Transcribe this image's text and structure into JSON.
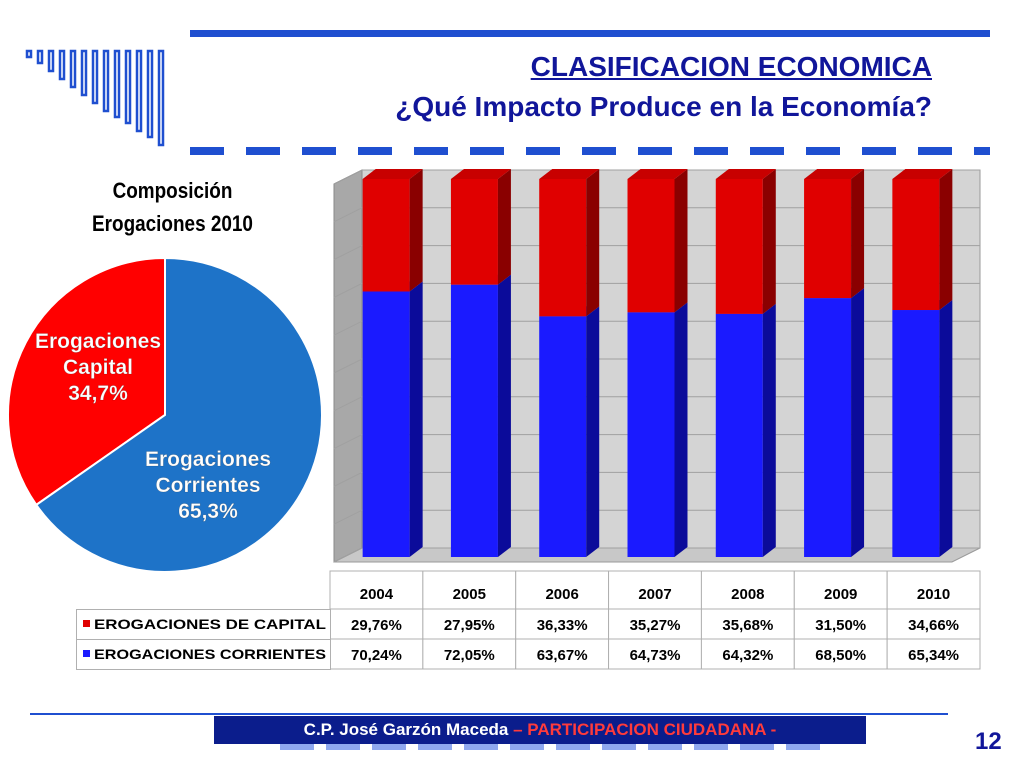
{
  "slide": {
    "title": "CLASIFICACION ECONOMICA",
    "subtitle": "¿Qué Impacto Produce en la Economía?",
    "footer_author": "C.P. José Garzón Maceda",
    "footer_highlight": " – PARTICIPACION CIUDADANA -",
    "page_number": "12"
  },
  "colors": {
    "capital": "#e00000",
    "corrientes": "#1a1aff",
    "pie_capital": "#ff0000",
    "pie_corrientes": "#1e73c8",
    "brand": "#11169a"
  },
  "chart_data": [
    {
      "type": "pie",
      "title_line1": "Composición",
      "title_line2": "Erogaciones 2010",
      "slices": [
        {
          "label_line1": "Erogaciones",
          "label_line2": "Capital",
          "value": 34.7,
          "value_label": "34,7%"
        },
        {
          "label_line1": "Erogaciones",
          "label_line2": "Corrientes",
          "value": 65.3,
          "value_label": "65,3%"
        }
      ]
    },
    {
      "type": "bar",
      "stacked": true,
      "percent_stacked": true,
      "style": "3d",
      "categories": [
        "2004",
        "2005",
        "2006",
        "2007",
        "2008",
        "2009",
        "2010"
      ],
      "ylim": [
        0,
        100
      ],
      "grid": true,
      "series": [
        {
          "name": "EROGACIONES CORRIENTES",
          "values": [
            70.24,
            72.05,
            63.67,
            64.73,
            64.32,
            68.5,
            65.34
          ],
          "labels": [
            "70,24%",
            "72,05%",
            "63,67%",
            "64,73%",
            "64,32%",
            "68,50%",
            "65,34%"
          ]
        },
        {
          "name": "EROGACIONES DE CAPITAL",
          "values": [
            29.76,
            27.95,
            36.33,
            35.27,
            35.68,
            31.5,
            34.66
          ],
          "labels": [
            "29,76%",
            "27,95%",
            "36,33%",
            "35,27%",
            "35,68%",
            "31,50%",
            "34,66%"
          ]
        }
      ]
    }
  ]
}
